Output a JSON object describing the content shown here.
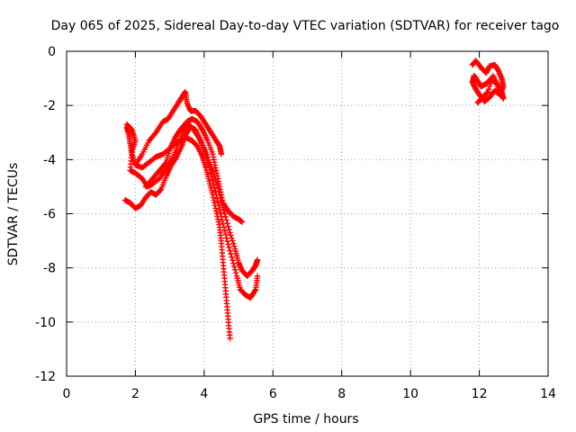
{
  "chart_data": {
    "type": "scatter",
    "title": "Day 065 of 2025, Sidereal Day-to-day VTEC variation (SDTVAR) for receiver tago",
    "xlabel": "GPS time / hours",
    "ylabel": "SDTVAR / TECUs",
    "xlim": [
      0,
      14
    ],
    "ylim": [
      -12,
      0
    ],
    "xticks": [
      "0",
      "2",
      "4",
      "6",
      "8",
      "10",
      "12",
      "14"
    ],
    "yticks": [
      "0",
      "-2",
      "-4",
      "-6",
      "-8",
      "-10",
      "-12"
    ],
    "grid": true,
    "series_color": "#ff0000",
    "marker": "plus",
    "series": [
      {
        "segments": [
          [
            [
              1.75,
              -2.8
            ],
            [
              1.8,
              -3.0
            ],
            [
              1.85,
              -3.4
            ],
            [
              1.9,
              -3.8
            ],
            [
              2.0,
              -4.2
            ],
            [
              2.2,
              -4.3
            ],
            [
              2.4,
              -4.1
            ],
            [
              2.6,
              -3.9
            ],
            [
              2.8,
              -3.8
            ],
            [
              3.0,
              -3.6
            ],
            [
              3.15,
              -3.4
            ],
            [
              3.3,
              -3.3
            ],
            [
              3.5,
              -3.2
            ],
            [
              3.65,
              -3.3
            ],
            [
              3.8,
              -3.5
            ],
            [
              3.95,
              -3.9
            ],
            [
              4.05,
              -4.3
            ],
            [
              4.15,
              -4.8
            ],
            [
              4.25,
              -5.3
            ],
            [
              4.35,
              -5.9
            ],
            [
              4.45,
              -6.5
            ],
            [
              4.5,
              -7.1
            ],
            [
              4.55,
              -7.8
            ],
            [
              4.6,
              -8.5
            ],
            [
              4.65,
              -9.2
            ],
            [
              4.7,
              -9.9
            ],
            [
              4.75,
              -10.6
            ]
          ],
          [
            [
              1.75,
              -2.7
            ],
            [
              1.9,
              -2.9
            ],
            [
              2.0,
              -3.3
            ],
            [
              1.9,
              -3.7
            ],
            [
              1.85,
              -4.4
            ],
            [
              2.0,
              -4.5
            ],
            [
              2.2,
              -4.7
            ],
            [
              2.35,
              -5.0
            ],
            [
              2.5,
              -4.9
            ],
            [
              2.7,
              -4.7
            ],
            [
              2.9,
              -4.3
            ],
            [
              3.1,
              -3.9
            ],
            [
              3.25,
              -3.4
            ],
            [
              3.4,
              -2.9
            ],
            [
              3.55,
              -2.7
            ],
            [
              3.7,
              -2.9
            ],
            [
              3.85,
              -3.2
            ],
            [
              4.0,
              -3.6
            ],
            [
              4.15,
              -4.1
            ],
            [
              4.3,
              -4.6
            ],
            [
              4.45,
              -5.3
            ],
            [
              4.6,
              -6.0
            ],
            [
              4.75,
              -6.7
            ],
            [
              4.9,
              -7.3
            ],
            [
              5.0,
              -7.8
            ],
            [
              5.1,
              -8.1
            ],
            [
              5.25,
              -8.3
            ],
            [
              5.4,
              -8.1
            ],
            [
              5.5,
              -7.9
            ],
            [
              5.55,
              -7.7
            ]
          ],
          [
            [
              1.7,
              -5.5
            ],
            [
              1.85,
              -5.6
            ],
            [
              2.0,
              -5.8
            ],
            [
              2.15,
              -5.7
            ],
            [
              2.3,
              -5.4
            ],
            [
              2.45,
              -5.2
            ],
            [
              2.6,
              -5.3
            ],
            [
              2.75,
              -5.1
            ],
            [
              2.9,
              -4.6
            ],
            [
              3.05,
              -4.2
            ],
            [
              3.2,
              -3.9
            ],
            [
              3.35,
              -3.5
            ],
            [
              3.45,
              -3.1
            ],
            [
              3.6,
              -2.8
            ],
            [
              3.75,
              -2.9
            ],
            [
              3.9,
              -3.3
            ],
            [
              4.05,
              -3.8
            ],
            [
              4.2,
              -4.5
            ],
            [
              4.35,
              -5.3
            ],
            [
              4.5,
              -6.1
            ],
            [
              4.65,
              -6.9
            ],
            [
              4.8,
              -7.6
            ],
            [
              4.95,
              -8.3
            ],
            [
              5.05,
              -8.8
            ],
            [
              5.2,
              -9.0
            ],
            [
              5.35,
              -9.1
            ],
            [
              5.5,
              -8.8
            ],
            [
              5.55,
              -8.3
            ]
          ],
          [
            [
              2.0,
              -4.2
            ],
            [
              2.2,
              -3.8
            ],
            [
              2.4,
              -3.3
            ],
            [
              2.6,
              -3.0
            ],
            [
              2.8,
              -2.6
            ],
            [
              2.95,
              -2.5
            ],
            [
              3.1,
              -2.2
            ],
            [
              3.25,
              -1.9
            ],
            [
              3.35,
              -1.7
            ],
            [
              3.45,
              -1.5
            ],
            [
              3.5,
              -1.9
            ],
            [
              3.6,
              -2.2
            ],
            [
              3.75,
              -2.2
            ],
            [
              3.9,
              -2.4
            ],
            [
              4.05,
              -2.7
            ],
            [
              4.2,
              -3.0
            ],
            [
              4.35,
              -3.3
            ],
            [
              4.45,
              -3.5
            ],
            [
              4.5,
              -3.8
            ]
          ],
          [
            [
              2.3,
              -5.0
            ],
            [
              2.5,
              -4.7
            ],
            [
              2.7,
              -4.4
            ],
            [
              2.9,
              -4.1
            ],
            [
              3.0,
              -3.6
            ],
            [
              3.15,
              -3.2
            ],
            [
              3.3,
              -2.9
            ],
            [
              3.5,
              -2.6
            ],
            [
              3.65,
              -2.5
            ],
            [
              3.8,
              -2.6
            ],
            [
              3.95,
              -2.9
            ],
            [
              4.1,
              -3.3
            ],
            [
              4.25,
              -3.8
            ],
            [
              4.35,
              -4.4
            ],
            [
              4.45,
              -5.0
            ],
            [
              4.55,
              -5.6
            ],
            [
              4.7,
              -5.9
            ],
            [
              4.85,
              -6.1
            ],
            [
              5.0,
              -6.2
            ],
            [
              5.1,
              -6.3
            ]
          ],
          [
            [
              11.8,
              -0.5
            ],
            [
              11.9,
              -0.35
            ],
            [
              12.05,
              -0.6
            ],
            [
              12.2,
              -0.8
            ],
            [
              12.3,
              -0.55
            ],
            [
              12.45,
              -0.5
            ],
            [
              12.55,
              -0.7
            ],
            [
              12.65,
              -1.0
            ],
            [
              12.7,
              -1.3
            ],
            [
              12.6,
              -1.6
            ],
            [
              12.45,
              -1.45
            ],
            [
              12.3,
              -1.7
            ],
            [
              12.15,
              -1.85
            ],
            [
              12.0,
              -1.6
            ],
            [
              11.9,
              -1.4
            ],
            [
              11.8,
              -1.15
            ],
            [
              11.85,
              -0.9
            ],
            [
              11.95,
              -1.1
            ],
            [
              12.05,
              -1.3
            ],
            [
              12.2,
              -1.2
            ],
            [
              12.35,
              -1.0
            ],
            [
              12.5,
              -1.2
            ],
            [
              12.65,
              -1.5
            ],
            [
              12.7,
              -1.75
            ],
            [
              12.55,
              -1.3
            ],
            [
              12.4,
              -0.9
            ],
            [
              12.25,
              -1.5
            ],
            [
              12.1,
              -1.7
            ],
            [
              11.95,
              -1.9
            ]
          ]
        ]
      }
    ]
  }
}
